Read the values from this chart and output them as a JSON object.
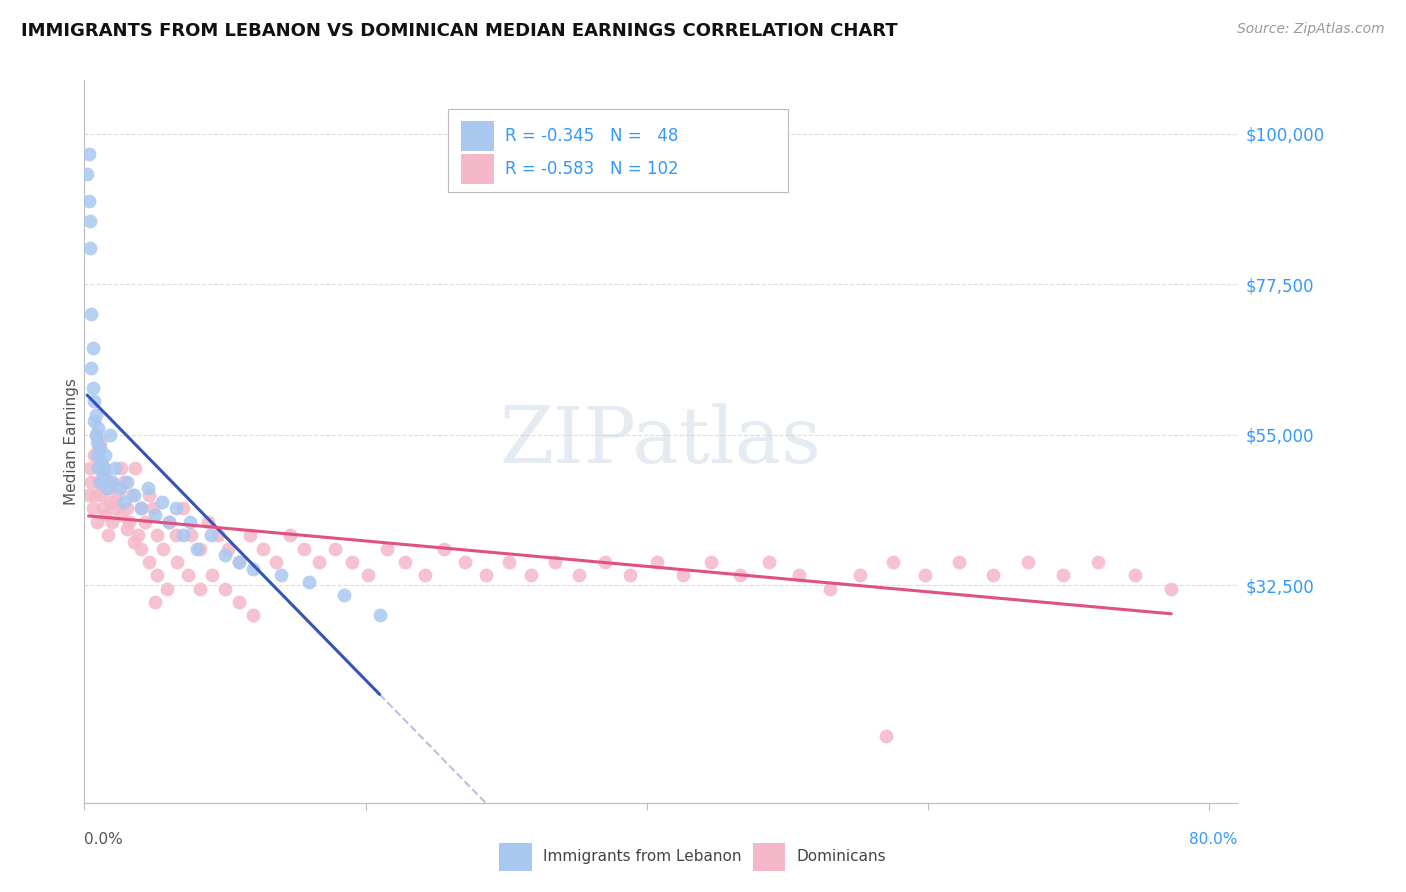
{
  "title": "IMMIGRANTS FROM LEBANON VS DOMINICAN MEDIAN EARNINGS CORRELATION CHART",
  "source": "Source: ZipAtlas.com",
  "watermark": "ZIPatlas",
  "ylabel": "Median Earnings",
  "xlim": [
    0.0,
    0.82
  ],
  "ylim": [
    0,
    108000
  ],
  "ytick_vals": [
    32500,
    55000,
    77500,
    100000
  ],
  "ytick_labels": [
    "$32,500",
    "$55,000",
    "$77,500",
    "$100,000"
  ],
  "xtick_left_label": "0.0%",
  "xtick_right_label": "80.0%",
  "legend_blue_label": "Immigrants from Lebanon",
  "legend_pink_label": "Dominicans",
  "legend_blue_text": "R = -0.345   N =   48",
  "legend_pink_text": "R = -0.583   N = 102",
  "blue_scatter_color": "#a8c8f0",
  "pink_scatter_color": "#f5b8c8",
  "blue_line_color": "#3355bb",
  "pink_line_color": "#e05080",
  "blue_dash_color": "#8899cc",
  "title_color": "#111111",
  "ylabel_color": "#555555",
  "ytick_color": "#3399ff",
  "source_color": "#999999",
  "legend_text_color": "#3399ff",
  "background_color": "#ffffff",
  "grid_color": "#dddddd",
  "watermark_color": "#ccd8e8",
  "lebanon_x": [
    0.002,
    0.003,
    0.003,
    0.004,
    0.004,
    0.005,
    0.005,
    0.006,
    0.006,
    0.007,
    0.007,
    0.008,
    0.008,
    0.009,
    0.009,
    0.01,
    0.01,
    0.011,
    0.011,
    0.012,
    0.013,
    0.014,
    0.015,
    0.016,
    0.018,
    0.02,
    0.022,
    0.025,
    0.028,
    0.03,
    0.035,
    0.04,
    0.045,
    0.05,
    0.055,
    0.06,
    0.065,
    0.07,
    0.075,
    0.08,
    0.09,
    0.1,
    0.11,
    0.12,
    0.14,
    0.16,
    0.185,
    0.21
  ],
  "lebanon_y": [
    94000,
    97000,
    90000,
    87000,
    83000,
    73000,
    65000,
    68000,
    62000,
    60000,
    57000,
    58000,
    55000,
    54000,
    52000,
    56000,
    50000,
    53000,
    48000,
    51000,
    49000,
    50000,
    52000,
    47000,
    55000,
    48000,
    50000,
    47000,
    45000,
    48000,
    46000,
    44000,
    47000,
    43000,
    45000,
    42000,
    44000,
    40000,
    42000,
    38000,
    40000,
    37000,
    36000,
    35000,
    34000,
    33000,
    31000,
    28000
  ],
  "dominican_x": [
    0.003,
    0.004,
    0.005,
    0.006,
    0.007,
    0.008,
    0.009,
    0.01,
    0.011,
    0.012,
    0.013,
    0.014,
    0.015,
    0.016,
    0.017,
    0.018,
    0.019,
    0.02,
    0.022,
    0.024,
    0.026,
    0.028,
    0.03,
    0.032,
    0.034,
    0.036,
    0.038,
    0.04,
    0.043,
    0.046,
    0.049,
    0.052,
    0.056,
    0.06,
    0.065,
    0.07,
    0.076,
    0.082,
    0.088,
    0.095,
    0.102,
    0.11,
    0.118,
    0.127,
    0.136,
    0.146,
    0.156,
    0.167,
    0.178,
    0.19,
    0.202,
    0.215,
    0.228,
    0.242,
    0.256,
    0.271,
    0.286,
    0.302,
    0.318,
    0.335,
    0.352,
    0.37,
    0.388,
    0.407,
    0.426,
    0.446,
    0.466,
    0.487,
    0.508,
    0.53,
    0.552,
    0.575,
    0.598,
    0.622,
    0.646,
    0.671,
    0.696,
    0.721,
    0.747,
    0.773,
    0.008,
    0.01,
    0.012,
    0.015,
    0.018,
    0.022,
    0.026,
    0.03,
    0.035,
    0.04,
    0.046,
    0.052,
    0.059,
    0.066,
    0.074,
    0.082,
    0.091,
    0.1,
    0.11,
    0.12,
    0.05,
    0.57
  ],
  "dominican_y": [
    46000,
    50000,
    48000,
    44000,
    52000,
    46000,
    42000,
    48000,
    54000,
    46000,
    44000,
    50000,
    43000,
    47000,
    40000,
    45000,
    48000,
    42000,
    44000,
    46000,
    50000,
    48000,
    44000,
    42000,
    46000,
    50000,
    40000,
    44000,
    42000,
    46000,
    44000,
    40000,
    38000,
    42000,
    40000,
    44000,
    40000,
    38000,
    42000,
    40000,
    38000,
    36000,
    40000,
    38000,
    36000,
    40000,
    38000,
    36000,
    38000,
    36000,
    34000,
    38000,
    36000,
    34000,
    38000,
    36000,
    34000,
    36000,
    34000,
    36000,
    34000,
    36000,
    34000,
    36000,
    34000,
    36000,
    34000,
    36000,
    34000,
    32000,
    34000,
    36000,
    34000,
    36000,
    34000,
    36000,
    34000,
    36000,
    34000,
    32000,
    55000,
    53000,
    51000,
    49000,
    47000,
    45000,
    43000,
    41000,
    39000,
    38000,
    36000,
    34000,
    32000,
    36000,
    34000,
    32000,
    34000,
    32000,
    30000,
    28000,
    30000,
    10000
  ]
}
